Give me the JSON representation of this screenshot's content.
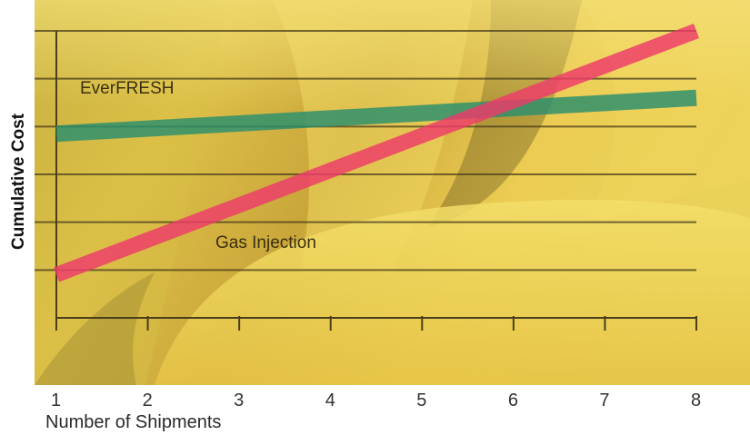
{
  "chart_data": {
    "type": "line",
    "title": "",
    "xlabel": "Number of Shipments",
    "ylabel": "Cumulative Cost",
    "x": [
      1,
      2,
      3,
      4,
      5,
      6,
      7,
      8
    ],
    "x_ticks": [
      "1",
      "2",
      "3",
      "4",
      "5",
      "6",
      "7",
      "8"
    ],
    "xlim": [
      1,
      8
    ],
    "ylim": [
      0,
      6
    ],
    "y_tick_labels_shown": false,
    "grid": true,
    "series": [
      {
        "name": "EverFRESH",
        "color": "#2a8f6e",
        "start": [
          1,
          3.85
        ],
        "end": [
          8,
          4.6
        ]
      },
      {
        "name": "Gas Injection",
        "color": "#ee3b6a",
        "start": [
          1,
          0.9
        ],
        "end": [
          8,
          6.0
        ]
      }
    ],
    "background": "banana photograph"
  }
}
